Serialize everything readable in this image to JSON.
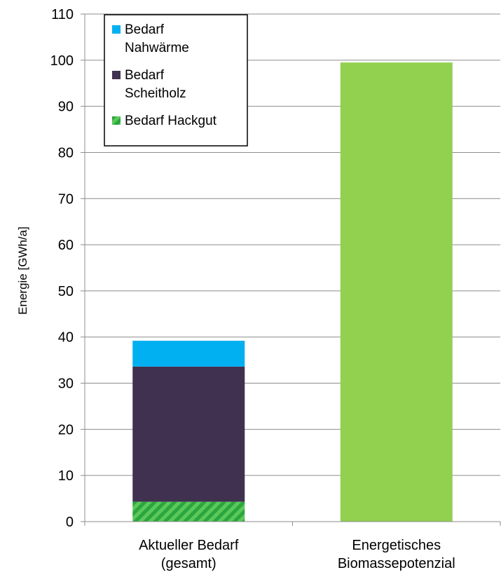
{
  "chart_data": {
    "type": "bar",
    "stacked": true,
    "categories": [
      [
        "Aktueller Bedarf",
        "(gesamt)"
      ],
      [
        "Energetisches",
        "Biomassepotenzial"
      ]
    ],
    "ylabel": "Energie [GWh/a]",
    "ylim": [
      0,
      110
    ],
    "yticks": [
      0,
      10,
      20,
      30,
      40,
      50,
      60,
      70,
      80,
      90,
      100,
      110
    ],
    "grid": true,
    "legend_position": "top-left",
    "series": [
      {
        "name": "Bedarf Hackgut",
        "legend_lines": [
          "Bedarf Hackgut"
        ],
        "values": [
          4.3,
          0
        ],
        "color": "#2db24a",
        "pattern": "diagonal-stripes"
      },
      {
        "name": "Bedarf Scheitholz",
        "legend_lines": [
          "Bedarf",
          "Scheitholz"
        ],
        "values": [
          29.3,
          0
        ],
        "color": "#403151"
      },
      {
        "name": "Bedarf Nahwärme",
        "legend_lines": [
          "Bedarf",
          "Nahwärme"
        ],
        "values": [
          5.6,
          0
        ],
        "color": "#00b0f0"
      },
      {
        "name": "",
        "legend_lines": [],
        "values": [
          0,
          99.5
        ],
        "color": "#92d050"
      }
    ],
    "legend_order": [
      "Bedarf Nahwärme",
      "Bedarf Scheitholz",
      "Bedarf Hackgut"
    ]
  }
}
